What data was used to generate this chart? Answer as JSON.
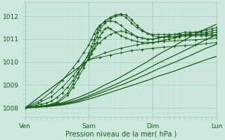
{
  "bg_color": "#cce8dc",
  "grid_color_major": "#aaccbc",
  "grid_color_minor": "#bddece",
  "line_color": "#1a5c1a",
  "ylabel_text": "Pression niveau de la mer( hPa )",
  "xtick_labels": [
    "Ven",
    "Sam",
    "Dim",
    "Lun"
  ],
  "ytick_values": [
    1008,
    1009,
    1010,
    1011,
    1012
  ],
  "ylim": [
    1007.6,
    1012.6
  ],
  "xlim": [
    0,
    72
  ],
  "xtick_positions": [
    0,
    24,
    48,
    72
  ],
  "lines": [
    {
      "x": [
        0,
        2,
        4,
        6,
        8,
        10,
        12,
        14,
        16,
        18,
        20,
        22,
        24,
        25,
        26,
        27,
        28,
        29,
        30,
        31,
        32,
        34,
        36,
        38,
        40,
        42,
        44,
        46,
        48,
        50,
        52,
        54,
        56,
        58,
        60,
        62,
        64,
        66,
        68,
        70,
        72
      ],
      "y": [
        1008.0,
        1008.05,
        1008.1,
        1008.15,
        1008.2,
        1008.3,
        1008.45,
        1008.65,
        1008.9,
        1009.2,
        1009.55,
        1009.85,
        1010.15,
        1010.35,
        1010.6,
        1010.85,
        1011.1,
        1011.3,
        1011.45,
        1011.5,
        1011.45,
        1011.3,
        1011.15,
        1011.05,
        1010.95,
        1010.9,
        1010.85,
        1010.85,
        1010.85,
        1010.9,
        1010.95,
        1011.0,
        1011.05,
        1011.1,
        1011.15,
        1011.15,
        1011.15,
        1011.15,
        1011.15,
        1011.15,
        1011.15
      ],
      "marker": true
    },
    {
      "x": [
        0,
        4,
        8,
        12,
        16,
        18,
        20,
        22,
        24,
        25,
        26,
        27,
        28,
        30,
        32,
        34,
        36,
        38,
        40,
        42,
        44,
        46,
        48,
        50,
        52,
        54,
        56,
        58,
        60,
        62,
        64,
        66,
        68,
        70,
        72
      ],
      "y": [
        1008.0,
        1008.05,
        1008.1,
        1008.2,
        1008.55,
        1008.9,
        1009.3,
        1009.75,
        1010.2,
        1010.5,
        1010.8,
        1011.1,
        1011.4,
        1011.7,
        1011.9,
        1012.0,
        1012.05,
        1011.95,
        1011.7,
        1011.5,
        1011.35,
        1011.25,
        1011.2,
        1011.2,
        1011.2,
        1011.2,
        1011.2,
        1011.25,
        1011.3,
        1011.3,
        1011.3,
        1011.3,
        1011.3,
        1011.35,
        1011.4
      ],
      "marker": true
    },
    {
      "x": [
        0,
        4,
        8,
        12,
        16,
        18,
        20,
        22,
        24,
        25,
        26,
        27,
        28,
        30,
        32,
        34,
        36,
        38,
        40,
        42,
        44,
        46,
        48,
        50,
        52,
        54,
        56,
        58,
        60,
        62,
        64,
        66,
        68,
        70,
        72
      ],
      "y": [
        1008.0,
        1008.05,
        1008.1,
        1008.25,
        1008.65,
        1009.05,
        1009.5,
        1009.95,
        1010.4,
        1010.7,
        1011.0,
        1011.3,
        1011.55,
        1011.8,
        1011.95,
        1012.05,
        1012.1,
        1012.05,
        1011.85,
        1011.6,
        1011.4,
        1011.25,
        1011.15,
        1011.1,
        1011.1,
        1011.1,
        1011.1,
        1011.15,
        1011.2,
        1011.25,
        1011.3,
        1011.35,
        1011.4,
        1011.45,
        1011.5
      ],
      "marker": true
    },
    {
      "x": [
        0,
        4,
        8,
        14,
        20,
        26,
        30,
        34,
        38,
        42,
        46,
        50,
        56,
        62,
        68,
        72
      ],
      "y": [
        1008.0,
        1008.02,
        1008.05,
        1008.12,
        1008.25,
        1008.45,
        1008.6,
        1008.75,
        1008.9,
        1009.05,
        1009.2,
        1009.38,
        1009.6,
        1009.85,
        1010.1,
        1010.25
      ],
      "marker": false
    },
    {
      "x": [
        0,
        4,
        8,
        14,
        20,
        26,
        30,
        34,
        38,
        42,
        46,
        50,
        56,
        62,
        68,
        72
      ],
      "y": [
        1008.0,
        1008.03,
        1008.07,
        1008.15,
        1008.3,
        1008.55,
        1008.72,
        1008.9,
        1009.08,
        1009.28,
        1009.48,
        1009.7,
        1009.98,
        1010.28,
        1010.6,
        1010.78
      ],
      "marker": false
    },
    {
      "x": [
        0,
        4,
        8,
        14,
        20,
        26,
        30,
        34,
        38,
        42,
        46,
        50,
        56,
        62,
        68,
        72
      ],
      "y": [
        1008.0,
        1008.04,
        1008.08,
        1008.18,
        1008.35,
        1008.62,
        1008.82,
        1009.02,
        1009.24,
        1009.46,
        1009.7,
        1009.95,
        1010.28,
        1010.62,
        1010.98,
        1011.2
      ],
      "marker": false
    },
    {
      "x": [
        0,
        4,
        8,
        14,
        20,
        26,
        30,
        34,
        38,
        42,
        46,
        50,
        56,
        62,
        68,
        72
      ],
      "y": [
        1008.0,
        1008.05,
        1008.1,
        1008.22,
        1008.45,
        1008.75,
        1009.0,
        1009.22,
        1009.48,
        1009.75,
        1010.02,
        1010.32,
        1010.7,
        1011.1,
        1011.45,
        1011.65
      ],
      "marker": false
    },
    {
      "x": [
        0,
        6,
        10,
        14,
        18,
        20,
        22,
        24,
        25,
        26,
        27,
        28,
        30,
        32,
        34,
        36,
        38,
        40,
        42,
        44,
        46,
        48,
        50,
        52,
        54,
        56,
        58,
        60,
        62,
        64,
        66,
        68,
        70,
        72
      ],
      "y": [
        1008.0,
        1008.35,
        1008.7,
        1009.2,
        1009.75,
        1010.05,
        1010.4,
        1010.75,
        1011.0,
        1011.25,
        1011.45,
        1011.6,
        1011.75,
        1011.8,
        1011.75,
        1011.6,
        1011.4,
        1011.25,
        1011.1,
        1011.05,
        1011.0,
        1011.0,
        1011.05,
        1011.08,
        1011.1,
        1011.1,
        1011.12,
        1011.15,
        1011.18,
        1011.2,
        1011.22,
        1011.25,
        1011.27,
        1011.3
      ],
      "marker": true
    },
    {
      "x": [
        0,
        5,
        10,
        14,
        18,
        20,
        22,
        24,
        26,
        28,
        30,
        32,
        34,
        36,
        38,
        40,
        42,
        44,
        46,
        48,
        50,
        52,
        54,
        56,
        58,
        60,
        64,
        68,
        72
      ],
      "y": [
        1008.0,
        1008.2,
        1008.5,
        1008.9,
        1009.4,
        1009.7,
        1010.0,
        1010.3,
        1010.6,
        1010.85,
        1011.05,
        1011.2,
        1011.3,
        1011.35,
        1011.3,
        1011.2,
        1011.1,
        1011.05,
        1011.0,
        1011.0,
        1011.05,
        1011.1,
        1011.15,
        1011.2,
        1011.2,
        1011.2,
        1011.2,
        1011.2,
        1011.2
      ],
      "marker": true
    },
    {
      "x": [
        0,
        24,
        30,
        36,
        42,
        48,
        52,
        56,
        60,
        64,
        68,
        72
      ],
      "y": [
        1008.0,
        1010.1,
        1010.4,
        1010.6,
        1010.75,
        1010.85,
        1010.9,
        1010.92,
        1010.95,
        1010.97,
        1011.0,
        1011.05
      ],
      "marker": true
    },
    {
      "x": [
        0,
        24,
        28,
        32,
        36,
        40,
        44,
        48,
        52,
        56,
        60,
        64,
        68,
        72
      ],
      "y": [
        1008.0,
        1010.1,
        1010.2,
        1010.3,
        1010.4,
        1010.5,
        1010.55,
        1010.6,
        1010.65,
        1010.68,
        1010.72,
        1010.75,
        1010.8,
        1010.85
      ],
      "marker": true
    }
  ]
}
